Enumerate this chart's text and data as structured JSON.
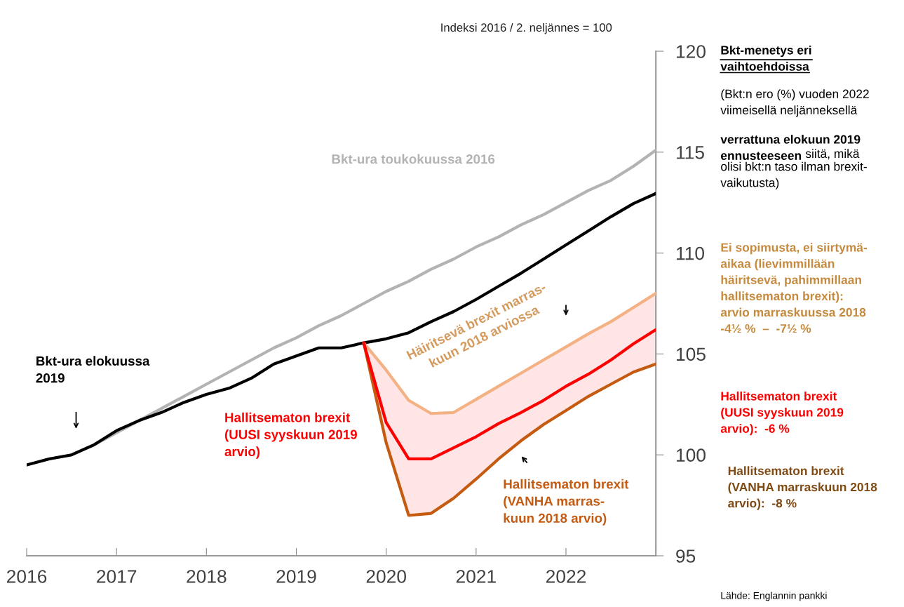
{
  "chart_data": {
    "type": "line",
    "ylabel": "Indeksi 2016 / 2. neljännes = 100",
    "xlim": [
      2016,
      2023
    ],
    "xticks": [
      2016,
      2017,
      2018,
      2019,
      2020,
      2021,
      2022,
      {
        "value": 2023,
        "label": null
      }
    ],
    "ylim": [
      95,
      120
    ],
    "yticks": [
      95,
      100,
      105,
      110,
      115,
      120
    ],
    "grid": false,
    "legend": false,
    "marker": "none",
    "line_style": "solid",
    "x": [
      2016,
      2016.25,
      2016.5,
      2016.75,
      2017,
      2017.25,
      2017.5,
      2017.75,
      2018,
      2018.25,
      2018.5,
      2018.75,
      2019,
      2019.25,
      2019.5,
      2019.75,
      2020,
      2020.25,
      2020.5,
      2020.75,
      2021,
      2021.25,
      2021.5,
      2021.75,
      2022,
      2022.25,
      2022.5,
      2022.75,
      2023
    ],
    "series": [
      {
        "name": "Bkt-ura toukokuussa 2016",
        "color": "#b3b3b3",
        "values": [
          99.5,
          99.8,
          100.0,
          100.5,
          101.1,
          101.7,
          102.3,
          102.9,
          103.5,
          104.1,
          104.7,
          105.3,
          105.8,
          106.4,
          106.9,
          107.5,
          108.1,
          108.6,
          109.2,
          109.7,
          110.3,
          110.8,
          111.4,
          111.9,
          112.5,
          113.1,
          113.6,
          114.3,
          115.1
        ]
      },
      {
        "name": "Bkt-ura elokuussa\n2019",
        "color": "#000000",
        "values": [
          99.5,
          99.8,
          100.0,
          100.5,
          101.2,
          101.7,
          102.1,
          102.6,
          103.0,
          103.3,
          103.8,
          104.5,
          104.9,
          105.3,
          105.3,
          105.55,
          105.75,
          106.05,
          106.6,
          107.1,
          107.7,
          108.35,
          109.0,
          109.7,
          110.4,
          111.1,
          111.8,
          112.45,
          112.95
        ]
      },
      {
        "name": "Häiritsevä brexit marras-\nkuun 2018 arviossa",
        "color": "#f4b183",
        "x": [
          2019.75,
          2020,
          2020.25,
          2020.5,
          2020.75,
          2021,
          2021.25,
          2021.5,
          2021.75,
          2022,
          2022.25,
          2022.5,
          2022.75,
          2023
        ],
        "values": [
          105.55,
          104.2,
          102.7,
          102.05,
          102.1,
          102.75,
          103.4,
          104.05,
          104.7,
          105.35,
          106.0,
          106.6,
          107.3,
          108.0
        ]
      },
      {
        "name": "Hallitsematon brexit\n(VANHA marras-\nkuun 2018 arvio)",
        "color": "#c55a11",
        "x": [
          2019.75,
          2020,
          2020.25,
          2020.5,
          2020.75,
          2021,
          2021.25,
          2021.5,
          2021.75,
          2022,
          2022.25,
          2022.5,
          2022.75,
          2023
        ],
        "values": [
          105.55,
          100.6,
          97.0,
          97.1,
          97.85,
          98.8,
          99.8,
          100.7,
          101.5,
          102.2,
          102.9,
          103.5,
          104.1,
          104.5
        ]
      },
      {
        "name": "Hallitsematon brexit\n(UUSI syyskuun 2019\narvio)",
        "color": "#ff0000",
        "x": [
          2019.75,
          2020,
          2020.25,
          2020.5,
          2020.75,
          2021,
          2021.25,
          2021.5,
          2021.75,
          2022,
          2022.25,
          2022.5,
          2022.75,
          2023
        ],
        "values": [
          105.55,
          101.6,
          99.8,
          99.8,
          100.35,
          100.9,
          101.55,
          102.1,
          102.7,
          103.4,
          104.0,
          104.7,
          105.5,
          106.2
        ],
        "lower": [
          105.55,
          100.6,
          97.0,
          97.1,
          97.85,
          98.8,
          99.8,
          100.7,
          101.5,
          102.2,
          102.9,
          103.5,
          104.1,
          104.5
        ],
        "upper": [
          105.55,
          104.2,
          102.7,
          102.05,
          102.1,
          102.75,
          103.4,
          104.05,
          104.7,
          105.35,
          106.0,
          106.6,
          107.3,
          108.0
        ]
      }
    ],
    "annotations": [
      "Bkt-menetys eri\nvaihtoehdoissa",
      "(Bkt:n ero (%) vuoden 2022\nviimeisellä neljänneksellä",
      "verrattuna elokuun 2019\nennusteeseen",
      "siitä, mikä\nolisi bkt:n taso ilman brexit-\nvaikutusta)",
      "Ei sopimusta, ei siirtymä-\naikaa (lievimmillään\nhäiritsevä, pahimmillaan\nhallitsematon brexit):\narvio marraskuussa 2018\n-4½ %  –  -7½ %",
      "Hallitsematon brexit\n(UUSI syyskuun 2019\narvio):  -6 %",
      "Hallitsematon brexit\n(VANHA marraskuun 2018\narvio):  -8 %",
      "Lähde: Englannin pankki"
    ]
  }
}
